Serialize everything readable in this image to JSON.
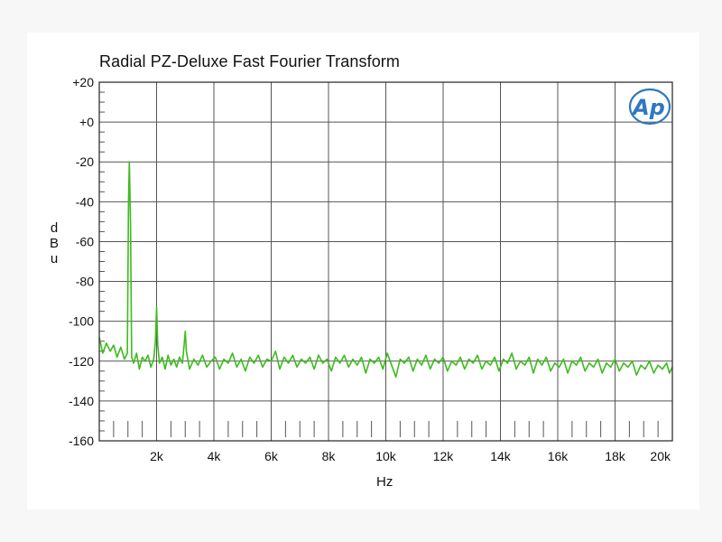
{
  "chart_data": {
    "type": "line",
    "title": "Radial PZ-Deluxe Fast Fourier Transform",
    "xlabel": "Hz",
    "ylabel": "dBu",
    "xlim": [
      0,
      20000
    ],
    "ylim": [
      -160,
      20
    ],
    "x_ticks": [
      "2k",
      "4k",
      "6k",
      "8k",
      "10k",
      "12k",
      "14k",
      "16k",
      "18k",
      "20k"
    ],
    "x_tick_values": [
      2000,
      4000,
      6000,
      8000,
      10000,
      12000,
      14000,
      16000,
      18000,
      20000
    ],
    "y_ticks": [
      "+20",
      "+0",
      "-20",
      "-40",
      "-60",
      "-80",
      "-100",
      "-120",
      "-140",
      "-160"
    ],
    "y_tick_values": [
      20,
      0,
      -20,
      -40,
      -60,
      -80,
      -100,
      -120,
      -140,
      -160
    ],
    "grid": true,
    "logo_text": "Ap",
    "colors": {
      "line": "#3dbb1e",
      "logo": "#2e78c2",
      "grid": "#555555"
    },
    "series": [
      {
        "values": [
          [
            0,
            -108
          ],
          [
            120,
            -116
          ],
          [
            250,
            -111
          ],
          [
            380,
            -115
          ],
          [
            500,
            -112
          ],
          [
            620,
            -118
          ],
          [
            750,
            -113
          ],
          [
            880,
            -119
          ],
          [
            980,
            -116
          ],
          [
            1020,
            -40
          ],
          [
            1050,
            -20
          ],
          [
            1090,
            -50
          ],
          [
            1130,
            -118
          ],
          [
            1200,
            -121
          ],
          [
            1300,
            -116
          ],
          [
            1400,
            -124
          ],
          [
            1500,
            -118
          ],
          [
            1600,
            -120
          ],
          [
            1700,
            -117
          ],
          [
            1800,
            -123
          ],
          [
            1900,
            -119
          ],
          [
            1960,
            -110
          ],
          [
            2000,
            -93
          ],
          [
            2040,
            -112
          ],
          [
            2100,
            -121
          ],
          [
            2200,
            -118
          ],
          [
            2300,
            -124
          ],
          [
            2400,
            -117
          ],
          [
            2500,
            -122
          ],
          [
            2600,
            -119
          ],
          [
            2700,
            -123
          ],
          [
            2800,
            -118
          ],
          [
            2900,
            -121
          ],
          [
            2960,
            -112
          ],
          [
            3000,
            -105
          ],
          [
            3040,
            -115
          ],
          [
            3150,
            -124
          ],
          [
            3300,
            -119
          ],
          [
            3450,
            -122
          ],
          [
            3600,
            -117
          ],
          [
            3750,
            -123
          ],
          [
            3900,
            -120
          ],
          [
            4050,
            -118
          ],
          [
            4200,
            -124
          ],
          [
            4350,
            -119
          ],
          [
            4500,
            -121
          ],
          [
            4650,
            -116
          ],
          [
            4800,
            -123
          ],
          [
            4950,
            -119
          ],
          [
            5100,
            -125
          ],
          [
            5250,
            -118
          ],
          [
            5400,
            -121
          ],
          [
            5550,
            -117
          ],
          [
            5700,
            -123
          ],
          [
            5850,
            -119
          ],
          [
            6000,
            -120
          ],
          [
            6150,
            -115
          ],
          [
            6300,
            -124
          ],
          [
            6450,
            -118
          ],
          [
            6600,
            -121
          ],
          [
            6750,
            -117
          ],
          [
            6900,
            -123
          ],
          [
            7050,
            -119
          ],
          [
            7200,
            -121
          ],
          [
            7350,
            -118
          ],
          [
            7500,
            -124
          ],
          [
            7650,
            -117
          ],
          [
            7800,
            -121
          ],
          [
            7950,
            -119
          ],
          [
            8100,
            -125
          ],
          [
            8250,
            -118
          ],
          [
            8400,
            -121
          ],
          [
            8550,
            -117
          ],
          [
            8700,
            -123
          ],
          [
            8850,
            -119
          ],
          [
            9000,
            -122
          ],
          [
            9150,
            -118
          ],
          [
            9300,
            -126
          ],
          [
            9450,
            -119
          ],
          [
            9600,
            -121
          ],
          [
            9750,
            -118
          ],
          [
            9900,
            -124
          ],
          [
            10050,
            -116
          ],
          [
            10200,
            -122
          ],
          [
            10350,
            -128
          ],
          [
            10500,
            -119
          ],
          [
            10650,
            -121
          ],
          [
            10800,
            -118
          ],
          [
            10950,
            -125
          ],
          [
            11100,
            -119
          ],
          [
            11250,
            -122
          ],
          [
            11400,
            -117
          ],
          [
            11550,
            -124
          ],
          [
            11700,
            -119
          ],
          [
            11850,
            -121
          ],
          [
            12000,
            -118
          ],
          [
            12150,
            -125
          ],
          [
            12300,
            -120
          ],
          [
            12450,
            -122
          ],
          [
            12600,
            -118
          ],
          [
            12750,
            -124
          ],
          [
            12900,
            -119
          ],
          [
            13050,
            -121
          ],
          [
            13200,
            -117
          ],
          [
            13350,
            -124
          ],
          [
            13500,
            -120
          ],
          [
            13650,
            -122
          ],
          [
            13800,
            -118
          ],
          [
            13950,
            -125
          ],
          [
            14100,
            -119
          ],
          [
            14250,
            -121
          ],
          [
            14400,
            -116
          ],
          [
            14550,
            -124
          ],
          [
            14700,
            -120
          ],
          [
            14850,
            -122
          ],
          [
            15000,
            -118
          ],
          [
            15150,
            -126
          ],
          [
            15300,
            -119
          ],
          [
            15450,
            -122
          ],
          [
            15600,
            -118
          ],
          [
            15750,
            -125
          ],
          [
            15900,
            -121
          ],
          [
            16050,
            -123
          ],
          [
            16200,
            -119
          ],
          [
            16350,
            -126
          ],
          [
            16500,
            -120
          ],
          [
            16650,
            -122
          ],
          [
            16800,
            -118
          ],
          [
            16950,
            -125
          ],
          [
            17100,
            -121
          ],
          [
            17250,
            -123
          ],
          [
            17400,
            -119
          ],
          [
            17550,
            -126
          ],
          [
            17700,
            -121
          ],
          [
            17850,
            -123
          ],
          [
            18000,
            -119
          ],
          [
            18150,
            -125
          ],
          [
            18300,
            -121
          ],
          [
            18450,
            -123
          ],
          [
            18600,
            -120
          ],
          [
            18750,
            -127
          ],
          [
            18900,
            -122
          ],
          [
            19050,
            -124
          ],
          [
            19200,
            -120
          ],
          [
            19350,
            -126
          ],
          [
            19500,
            -122
          ],
          [
            19650,
            -124
          ],
          [
            19800,
            -121
          ],
          [
            19900,
            -126
          ],
          [
            20000,
            -123
          ]
        ]
      }
    ]
  }
}
